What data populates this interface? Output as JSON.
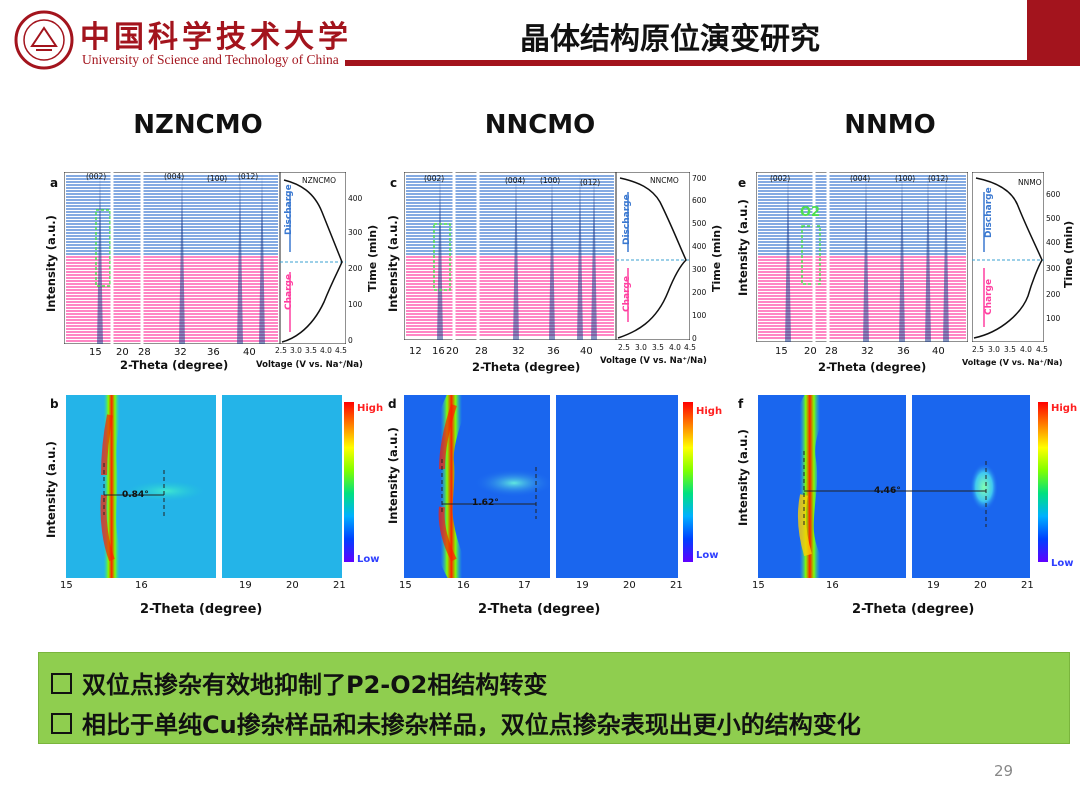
{
  "header": {
    "logo_cn": "中国科学技术大学",
    "logo_en": "University of Science and Technology of China",
    "title": "晶体结构原位演变研究"
  },
  "columns": [
    {
      "title": "NZNCMO",
      "letter_top": "a",
      "letter_bottom": "b",
      "legend": "NZNCMO",
      "peaks": [
        "(002)",
        "(004)",
        "(100)",
        "(012)"
      ],
      "xticks": [
        "15",
        "20",
        "28",
        "32",
        "36",
        "40"
      ],
      "time_ticks": [
        "0",
        "100",
        "200",
        "300",
        "400"
      ],
      "volt_ticks": [
        "2.5",
        "3.0",
        "3.5",
        "4.0",
        "4.5"
      ],
      "shift": "0.84°",
      "hm_xticks": [
        "15",
        "16",
        "19",
        "20",
        "21"
      ]
    },
    {
      "title": "NNCMO",
      "letter_top": "c",
      "letter_bottom": "d",
      "legend": "NNCMO",
      "peaks": [
        "(002)",
        "(004)",
        "(100)",
        "(012)"
      ],
      "xticks": [
        "12",
        "16",
        "20",
        "28",
        "32",
        "36",
        "40"
      ],
      "time_ticks": [
        "0",
        "100",
        "200",
        "300",
        "400",
        "500",
        "600",
        "700"
      ],
      "volt_ticks": [
        "2.5",
        "3.0",
        "3.5",
        "4.0",
        "4.5"
      ],
      "shift": "1.62°",
      "hm_xticks": [
        "15",
        "16",
        "17",
        "19",
        "20",
        "21"
      ]
    },
    {
      "title": "NNMO",
      "letter_top": "e",
      "letter_bottom": "f",
      "legend": "NNMO",
      "peaks": [
        "(002)",
        "(004)",
        "(100)",
        "(012)"
      ],
      "xticks": [
        "15",
        "20",
        "28",
        "32",
        "36",
        "40"
      ],
      "time_ticks": [
        "100",
        "200",
        "300",
        "400",
        "500",
        "600"
      ],
      "volt_ticks": [
        "2.5",
        "3.0",
        "3.5",
        "4.0",
        "4.5"
      ],
      "shift": "4.46°",
      "hm_xticks": [
        "15",
        "16",
        "19",
        "20",
        "21"
      ],
      "phase_label": "O2"
    }
  ],
  "labels": {
    "intensity": "Intensity (a.u.)",
    "two_theta": "2-Theta (degree)",
    "time": "Time (min)",
    "voltage": "Voltage (V vs. Na⁺/Na)",
    "discharge": "Discharge",
    "charge": "Charge",
    "high": "High",
    "low": "Low",
    "p2": "P2"
  },
  "colors": {
    "brand": "#a3141d",
    "discharge": "#3a78d0",
    "charge": "#ff3fa0",
    "box": "#8fce4f"
  },
  "conclusions": [
    "双位点掺杂有效地抑制了P2-O2相结构转变",
    "相比于单纯Cu掺杂样品和未掺杂样品，双位点掺杂表现出更小的结构变化"
  ],
  "page_number": "29"
}
